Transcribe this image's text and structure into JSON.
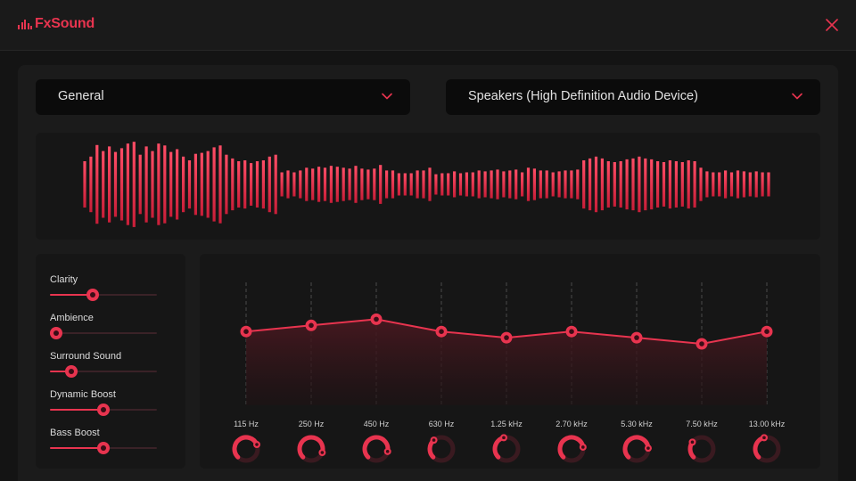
{
  "app": {
    "name": "FxSound"
  },
  "preset": {
    "selected": "General"
  },
  "device": {
    "selected": "Speakers (High Definition Audio Device)"
  },
  "effects": [
    {
      "name": "Clarity",
      "value": 0.4
    },
    {
      "name": "Ambience",
      "value": 0.0
    },
    {
      "name": "Surround Sound",
      "value": 0.2
    },
    {
      "name": "Dynamic Boost",
      "value": 0.5
    },
    {
      "name": "Bass Boost",
      "value": 0.5
    }
  ],
  "equalizer": {
    "bands": [
      {
        "label": "115 Hz",
        "gain": 0.6,
        "knob": 0.75
      },
      {
        "label": "250 Hz",
        "gain": 0.65,
        "knob": 0.9
      },
      {
        "label": "450 Hz",
        "gain": 0.7,
        "knob": 0.88
      },
      {
        "label": "630 Hz",
        "gain": 0.6,
        "knob": 0.35
      },
      {
        "label": "1.25 kHz",
        "gain": 0.55,
        "knob": 0.45
      },
      {
        "label": "2.70 kHz",
        "gain": 0.6,
        "knob": 0.8
      },
      {
        "label": "5.30 kHz",
        "gain": 0.55,
        "knob": 0.82
      },
      {
        "label": "7.50 kHz",
        "gain": 0.5,
        "knob": 0.3
      },
      {
        "label": "13.00 kHz",
        "gain": 0.6,
        "knob": 0.45
      }
    ]
  },
  "visualizer": {
    "levels": [
      0.5,
      0.6,
      0.85,
      0.72,
      0.82,
      0.7,
      0.78,
      0.88,
      0.92,
      0.64,
      0.82,
      0.72,
      0.88,
      0.84,
      0.7,
      0.76,
      0.6,
      0.52,
      0.66,
      0.68,
      0.72,
      0.8,
      0.84,
      0.64,
      0.56,
      0.5,
      0.52,
      0.46,
      0.5,
      0.52,
      0.6,
      0.64,
      0.26,
      0.3,
      0.26,
      0.3,
      0.36,
      0.34,
      0.38,
      0.36,
      0.4,
      0.38,
      0.36,
      0.34,
      0.4,
      0.34,
      0.32,
      0.34,
      0.42,
      0.3,
      0.3,
      0.24,
      0.24,
      0.24,
      0.3,
      0.3,
      0.36,
      0.22,
      0.24,
      0.24,
      0.28,
      0.24,
      0.26,
      0.26,
      0.3,
      0.28,
      0.3,
      0.32,
      0.28,
      0.3,
      0.32,
      0.26,
      0.36,
      0.34,
      0.3,
      0.3,
      0.26,
      0.28,
      0.3,
      0.3,
      0.32,
      0.52,
      0.56,
      0.6,
      0.56,
      0.5,
      0.48,
      0.5,
      0.54,
      0.56,
      0.6,
      0.56,
      0.54,
      0.5,
      0.48,
      0.52,
      0.5,
      0.48,
      0.52,
      0.5,
      0.36,
      0.28,
      0.26,
      0.26,
      0.3,
      0.26,
      0.3,
      0.28,
      0.26,
      0.28,
      0.26,
      0.26
    ],
    "color": "#e8344f"
  },
  "colors": {
    "accent": "#e8344f",
    "accent_dark": "#3a0d16"
  }
}
